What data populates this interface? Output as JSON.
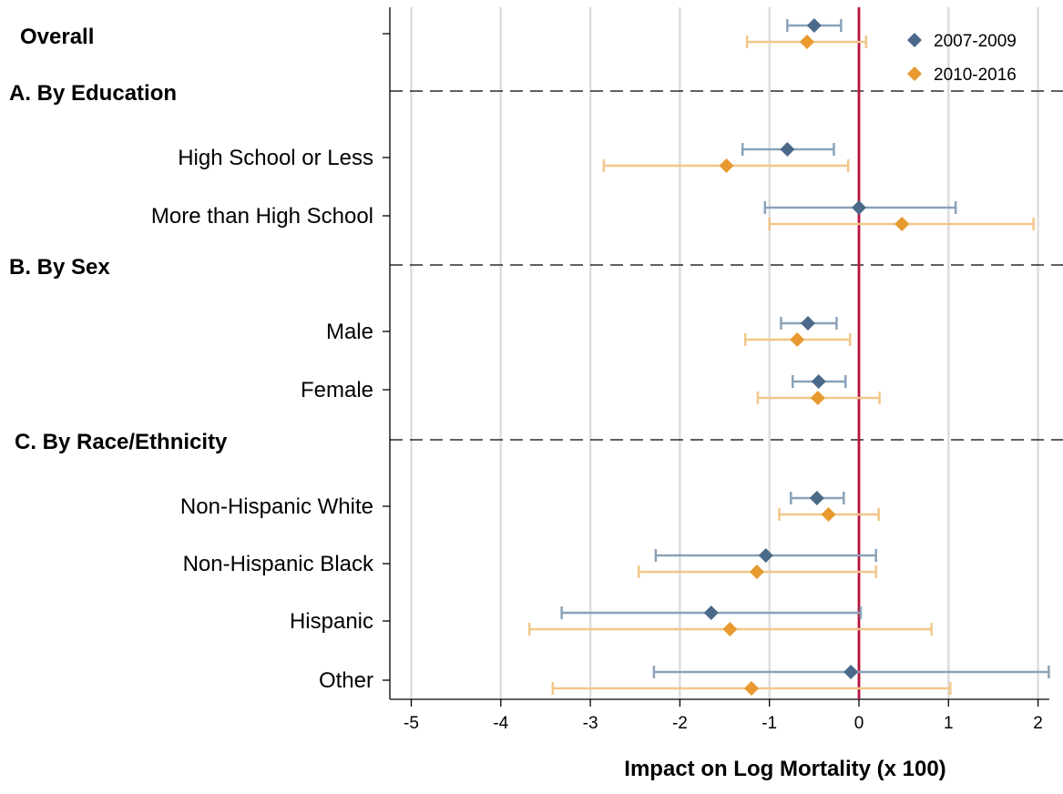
{
  "chart_data": {
    "type": "forest",
    "xlabel": "Impact on Log Mortality (x 100)",
    "xlim": [
      -5,
      2
    ],
    "xticks": [
      -5,
      -4,
      -3,
      -2,
      -1,
      0,
      1,
      2
    ],
    "reference_line_x": 0,
    "grid": "vertical",
    "legend": {
      "placement": "top-right"
    },
    "colors": {
      "series_1_marker": "#4b6a8a",
      "series_1_whisker": "#8ba2b8",
      "series_2_marker": "#e8992f",
      "series_2_whisker": "#f2c68a",
      "reference_line": "#b5123b",
      "grid": "#dddddd",
      "separator": "#000000"
    },
    "series": [
      {
        "name": "2007-2009"
      },
      {
        "name": "2010-2016"
      }
    ],
    "sections": [
      {
        "title": "Overall",
        "rows": [
          {
            "label": "",
            "estimates": [
              {
                "value": -0.5,
                "lo": -0.8,
                "hi": -0.2
              },
              {
                "value": -0.58,
                "lo": -1.25,
                "hi": 0.08
              }
            ]
          }
        ]
      },
      {
        "title": "A. By Education",
        "rows": [
          {
            "label": "High School or Less",
            "estimates": [
              {
                "value": -0.8,
                "lo": -1.3,
                "hi": -0.28
              },
              {
                "value": -1.48,
                "lo": -2.85,
                "hi": -0.12
              }
            ]
          },
          {
            "label": "More than High School",
            "estimates": [
              {
                "value": 0.0,
                "lo": -1.05,
                "hi": 1.08
              },
              {
                "value": 0.48,
                "lo": -1.0,
                "hi": 1.95
              }
            ]
          }
        ]
      },
      {
        "title": "B. By Sex",
        "rows": [
          {
            "label": "Male",
            "estimates": [
              {
                "value": -0.57,
                "lo": -0.87,
                "hi": -0.25
              },
              {
                "value": -0.69,
                "lo": -1.27,
                "hi": -0.1
              }
            ]
          },
          {
            "label": "Female",
            "estimates": [
              {
                "value": -0.45,
                "lo": -0.74,
                "hi": -0.15
              },
              {
                "value": -0.46,
                "lo": -1.13,
                "hi": 0.23
              }
            ]
          }
        ]
      },
      {
        "title": "C. By Race/Ethnicity",
        "rows": [
          {
            "label": "Non-Hispanic White",
            "estimates": [
              {
                "value": -0.47,
                "lo": -0.76,
                "hi": -0.17
              },
              {
                "value": -0.34,
                "lo": -0.89,
                "hi": 0.22
              }
            ]
          },
          {
            "label": "Non-Hispanic Black",
            "estimates": [
              {
                "value": -1.04,
                "lo": -2.27,
                "hi": 0.19
              },
              {
                "value": -1.14,
                "lo": -2.46,
                "hi": 0.19
              }
            ]
          },
          {
            "label": "Hispanic",
            "estimates": [
              {
                "value": -1.65,
                "lo": -3.32,
                "hi": 0.02
              },
              {
                "value": -1.44,
                "lo": -3.68,
                "hi": 0.81
              }
            ]
          },
          {
            "label": "Other",
            "estimates": [
              {
                "value": -0.09,
                "lo": -2.29,
                "hi": 2.12
              },
              {
                "value": -1.2,
                "lo": -3.42,
                "hi": 1.02
              }
            ]
          }
        ]
      }
    ]
  }
}
